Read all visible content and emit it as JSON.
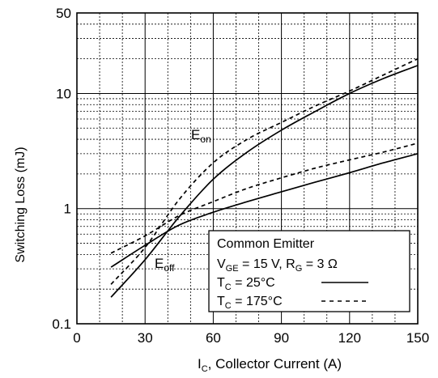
{
  "chart_data": {
    "type": "line",
    "xlabel": {
      "main": "I",
      "sub": "C",
      "rest": ", Collector Current (A)"
    },
    "ylabel": "Switching Loss (mJ)",
    "xlim": [
      0,
      150
    ],
    "ylim": [
      0.1,
      50
    ],
    "yscale": "log",
    "grid": true,
    "x_ticks": [
      0,
      30,
      60,
      90,
      120,
      150
    ],
    "x_tick_labels": [
      "0",
      "30",
      "60",
      "90",
      "120",
      "150"
    ],
    "y_ticks": [
      0.1,
      1,
      10,
      50
    ],
    "y_tick_labels": [
      "0.1",
      "1",
      "10",
      "50"
    ],
    "series": [
      {
        "curve": "Eon",
        "condition": "25C",
        "style": "solid",
        "x": [
          15,
          30,
          45,
          60,
          75,
          90,
          105,
          120,
          135,
          150
        ],
        "y": [
          0.17,
          0.36,
          0.85,
          1.8,
          3.1,
          4.8,
          7.0,
          10.0,
          13.5,
          17.5
        ]
      },
      {
        "curve": "Eon",
        "condition": "175C",
        "style": "dashed",
        "x": [
          15,
          30,
          45,
          60,
          75,
          90,
          105,
          120,
          135,
          150
        ],
        "y": [
          0.22,
          0.46,
          1.2,
          2.5,
          4.0,
          5.6,
          7.8,
          10.5,
          14.5,
          20.0
        ]
      },
      {
        "curve": "Eoff",
        "condition": "25C",
        "style": "solid",
        "x": [
          15,
          30,
          45,
          60,
          75,
          90,
          105,
          120,
          135,
          150
        ],
        "y": [
          0.31,
          0.48,
          0.72,
          0.93,
          1.15,
          1.4,
          1.7,
          2.05,
          2.5,
          3.0
        ]
      },
      {
        "curve": "Eoff",
        "condition": "175C",
        "style": "dashed",
        "x": [
          15,
          30,
          45,
          60,
          75,
          90,
          105,
          120,
          135,
          150
        ],
        "y": [
          0.41,
          0.58,
          0.87,
          1.15,
          1.5,
          1.85,
          2.25,
          2.65,
          3.1,
          3.7
        ]
      }
    ],
    "curve_labels": [
      {
        "main": "E",
        "sub": "on"
      },
      {
        "main": "E",
        "sub": "off"
      }
    ],
    "legend": {
      "placement": "bottom-right",
      "title": "Common Emitter",
      "conditions": [
        {
          "p1": "V",
          "s1": "GE",
          "p2": " = 15 V, R",
          "s2": "G",
          "p3": " = 3 Ω"
        }
      ],
      "entries": [
        {
          "p1": "T",
          "s1": "C",
          "p2": " = 25°C",
          "style": "solid"
        },
        {
          "p1": "T",
          "s1": "C",
          "p2": " = 175°C",
          "style": "dashed"
        }
      ]
    }
  }
}
